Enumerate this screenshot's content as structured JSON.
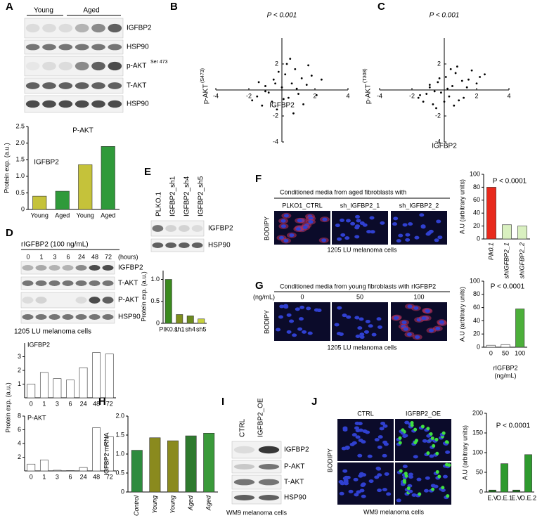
{
  "panel_letters": [
    "A",
    "B",
    "C",
    "D",
    "E",
    "F",
    "G",
    "H",
    "I",
    "J"
  ],
  "panel_A": {
    "groups": [
      "Young",
      "Aged"
    ],
    "blots": [
      "IGFBP2",
      "HSP90",
      "p-AKT",
      "T-AKT",
      "HSP90"
    ],
    "p_akt_superscript": "Ser 473"
  },
  "panel_D": {
    "treatment": "rIGFBP2 (100 ng/mL)",
    "lanes": [
      "0",
      "1",
      "3",
      "6",
      "24",
      "48",
      "72"
    ],
    "unit": "(hours)",
    "blots": [
      "IGFBP2",
      "T-AKT",
      "P-AKT",
      "HSP90"
    ],
    "cells": "1205 LU melanoma cells"
  },
  "panel_E": {
    "lanes": [
      "PLKO.1",
      "IGFBP2_sh1",
      "IGFBP2_sh4",
      "IGFBP2_sh5"
    ],
    "blots": [
      "IGFBP2",
      "HSP90"
    ]
  },
  "panel_F": {
    "header": "Conditioned media from aged fibroblasts with",
    "conditions": [
      "PLKO1_CTRL",
      "sh_IGFBP2_1",
      "sh_IGFBP2_2"
    ],
    "stain": "BODIPY",
    "cells": "1205 LU melanoma cells"
  },
  "panel_G": {
    "header": "Conditioned media from young fibroblasts with rIGFBP2",
    "unit": "(ng/mL)",
    "conditions": [
      "0",
      "50",
      "100"
    ],
    "stain": "BODIPY",
    "cells": "1205 LU melanoma cells"
  },
  "panel_I": {
    "lanes": [
      "CTRL",
      "IGFBP2_OE"
    ],
    "blots": [
      "IGFBP2",
      "P-AKT",
      "T-AKT",
      "HSP90"
    ],
    "cells": "WM9 melanoma cells"
  },
  "panel_J": {
    "conditions": [
      "CTRL",
      "IGFBP2_OE"
    ],
    "stain": "BODIPY",
    "cells": "WM9 melanoma cells"
  },
  "chart_data": [
    {
      "type": "bar",
      "ylabel": "Protein exp. (a.u.)",
      "categories": [
        "Young",
        "Aged",
        "Young",
        "Aged"
      ],
      "values": [
        0.4,
        0.55,
        1.35,
        1.9
      ],
      "colors": [
        "#c5c23a",
        "#2f9a3a",
        "#c5c23a",
        "#2f9a3a"
      ],
      "ylim": [
        0,
        2.5
      ],
      "yticks": [
        0,
        0.5,
        {
          "value": 1,
          "label": "1.0"
        },
        1.5,
        {
          "value": 2,
          "label": "2.0"
        },
        2.5
      ],
      "annotations": [
        "IGFBP2",
        "P-AKT"
      ]
    },
    {
      "type": "scatter",
      "annotations": [
        "P < 0.001"
      ],
      "xlabel": "IGFBP2",
      "ylabel": "p-AKT",
      "ylabel_superscript": "(S473)",
      "color": "#000000",
      "xlim": [
        -4,
        4
      ],
      "ylim": [
        -4,
        4
      ],
      "xticks": [
        -4,
        -2,
        2,
        4
      ],
      "yticks": [
        -4,
        -2,
        2
      ],
      "x": [
        -1.8,
        -1.5,
        -1.2,
        -1.0,
        -0.8,
        -0.5,
        -0.3,
        0,
        0.2,
        0.4,
        0.6,
        0.8,
        1.0,
        1.2,
        1.5,
        1.8,
        2.1,
        -0.6,
        0.3,
        0.9,
        -1.4,
        1.3,
        -0.2,
        0.7,
        1.6,
        -1.0,
        0.1,
        0.5,
        -0.4,
        2.4
      ],
      "y": [
        -0.8,
        -0.5,
        -1.2,
        0.3,
        -0.2,
        0.8,
        -1.5,
        0.2,
        1.2,
        -0.6,
        0.5,
        1.6,
        -0.3,
        0.9,
        0.4,
        1.1,
        -0.4,
        -0.9,
        2.0,
        0.1,
        0.6,
        -1.1,
        1.4,
        -1.8,
        1.9,
        -0.1,
        -0.7,
        2.4,
        0.5,
        0.8
      ]
    },
    {
      "type": "scatter",
      "annotations": [
        "P < 0.001"
      ],
      "xlabel": "IGFBP2",
      "ylabel": "p-AKT",
      "ylabel_superscript": "(T308)",
      "color": "#000000",
      "xlim": [
        -4,
        4
      ],
      "ylim": [
        -4,
        4
      ],
      "xticks": [
        -4,
        -2,
        2,
        4
      ],
      "yticks": [
        -4,
        -2,
        2
      ],
      "x": [
        -1.6,
        -1.3,
        -1.1,
        -0.9,
        -0.7,
        -0.4,
        -0.2,
        0.1,
        0.3,
        0.5,
        0.7,
        0.9,
        1.1,
        1.4,
        1.7,
        2.0,
        2.2,
        -0.5,
        0.2,
        0.8,
        -1.5,
        1.2,
        -0.3,
        0.6,
        1.5,
        -0.9,
        0.0,
        0.4,
        -0.6,
        2.5
      ],
      "y": [
        -0.6,
        -0.9,
        -0.3,
        0.4,
        -1.1,
        0.6,
        -0.2,
        1.0,
        -0.5,
        0.3,
        1.3,
        -0.8,
        0.7,
        0.2,
        1.5,
        0.5,
        1.0,
        -1.4,
        0.1,
        1.8,
        -0.4,
        -0.6,
        0.9,
        -1.2,
        0.8,
        0.2,
        -0.9,
        1.6,
        -0.1,
        1.2
      ]
    },
    {
      "type": "bar",
      "title": "IGFBP2",
      "ylabel": "Protein exp. (a.u.)",
      "categories": [
        "0",
        "1",
        "3",
        "6",
        "24",
        "48",
        "72"
      ],
      "values": [
        1,
        1.85,
        1.4,
        1.3,
        2.2,
        3.3,
        3.2
      ],
      "color": "#ffffff",
      "ylim": [
        0,
        4
      ],
      "yticks": [
        1,
        2,
        3
      ]
    },
    {
      "type": "bar",
      "title": "P-AKT",
      "categories": [
        "0",
        "1",
        "3",
        "6",
        "24",
        "48",
        "72"
      ],
      "values": [
        1,
        1.6,
        0.1,
        0.05,
        0.5,
        6.3,
        5.0
      ],
      "color": "#ffffff",
      "ylim": [
        0,
        8
      ],
      "yticks": [
        2,
        4,
        6,
        8
      ]
    },
    {
      "type": "bar",
      "ylabel": "Protein exp. (a.u.)",
      "categories": [
        "PIK0.1",
        "sh1",
        "sh4",
        "sh5"
      ],
      "values": [
        1.0,
        0.2,
        0.17,
        0.1
      ],
      "colors": [
        "#3a8a1e",
        "#7f8f1e",
        "#6b8a1e",
        "#c8d23c"
      ],
      "ylim": [
        0,
        1.2
      ],
      "yticks": [
        0,
        0.5,
        {
          "value": 1,
          "label": "1.0"
        }
      ]
    },
    {
      "type": "bar",
      "ylabel": "A.U (arbitrary units)",
      "annotations": [
        "P < 0.0001"
      ],
      "categories": [
        "Plk0.1",
        "shIGFBP2_1",
        "shIGFBP2_2"
      ],
      "values": [
        80,
        22,
        20
      ],
      "colors": [
        "#e8291c",
        "#d9f0c0",
        "#d9f0c0"
      ],
      "ylim": [
        0,
        100
      ],
      "yticks": [
        0,
        20,
        40,
        60,
        80,
        100
      ]
    },
    {
      "type": "bar",
      "ylabel": "A.U (arbitrary units)",
      "annotations": [
        "P < 0.0001"
      ],
      "xlabel": [
        "rIGFBP2",
        "(ng/mL)"
      ],
      "categories": [
        "0",
        "50",
        "100"
      ],
      "values": [
        3,
        4,
        58
      ],
      "colors": [
        "#ffffff",
        "#ffffff",
        "#4caf3a"
      ],
      "ylim": [
        0,
        100
      ],
      "yticks": [
        0,
        20,
        40,
        60,
        80,
        100
      ]
    },
    {
      "type": "bar",
      "ylabel": "IGFBP2 mRNA",
      "categories": [
        "Control",
        "Young",
        "Young",
        "Aged",
        "Aged"
      ],
      "values": [
        1.1,
        1.43,
        1.35,
        1.48,
        1.55
      ],
      "colors": [
        "#2e8b3e",
        "#8a8a1e",
        "#8a8a1e",
        "#2e7a2e",
        "#3a9a3a"
      ],
      "ylim": [
        0,
        2
      ],
      "yticks": [
        0,
        0.5,
        {
          "value": 1,
          "label": "1.0"
        },
        1.5,
        {
          "value": 2,
          "label": "2.0"
        }
      ]
    },
    {
      "type": "bar",
      "ylabel": "A.U (arbitrary units)",
      "annotations": [
        "P < 0.0001"
      ],
      "categories": [
        "E.V",
        "O.E.1",
        "E.V",
        "O.E.2"
      ],
      "values": [
        5,
        72,
        5,
        95
      ],
      "colors": [
        "#1a6b1a",
        "#2e9a2e",
        "#1a6b1a",
        "#2e9a2e"
      ],
      "ylim": [
        0,
        200
      ],
      "yticks": [
        0,
        50,
        100,
        150,
        200
      ]
    }
  ]
}
